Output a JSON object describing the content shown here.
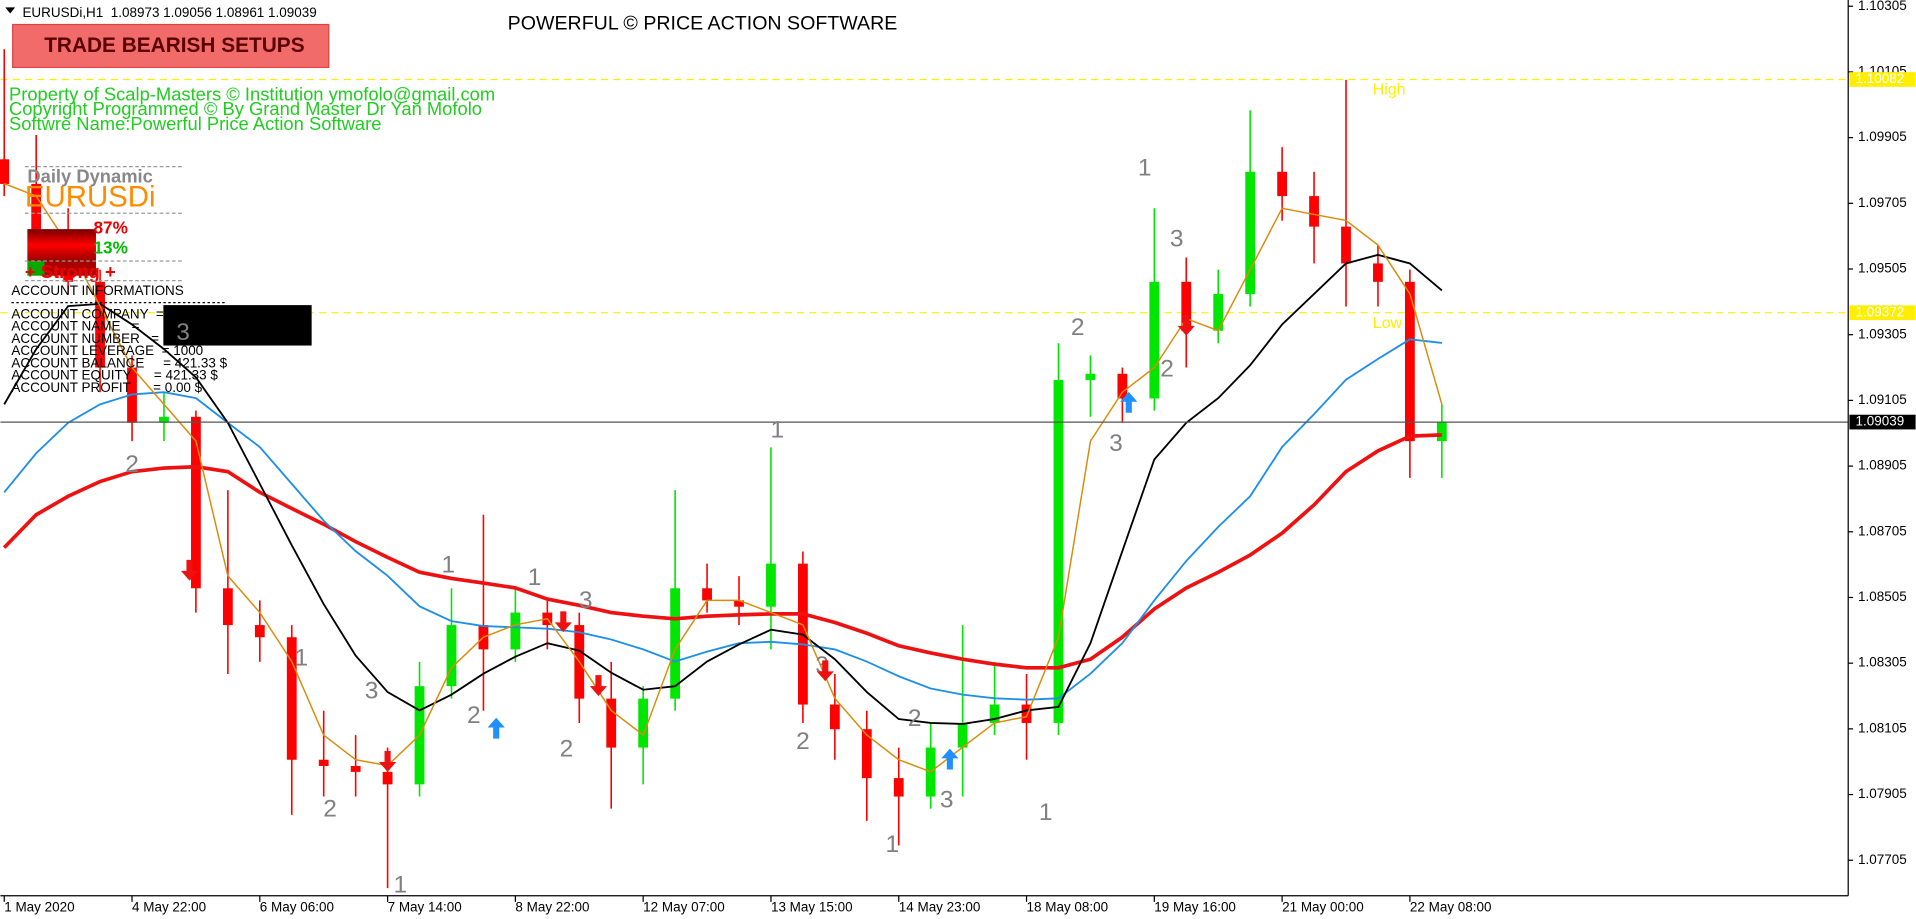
{
  "chart_data": {
    "type": "candlestick",
    "header": "EURUSDi,H1  1.08973 1.09056 1.08961 1.09039",
    "title": "POWERFUL © PRICE ACTION SOFTWARE",
    "ylim": [
      1.07597,
      1.10324
    ],
    "yticks": [
      1.10305,
      1.10105,
      1.09905,
      1.09705,
      1.09505,
      1.09305,
      1.09105,
      1.08905,
      1.08705,
      1.08505,
      1.08305,
      1.08105,
      1.07905,
      1.07705
    ],
    "xlim": [
      -0.12,
      57.72
    ],
    "xticks": [
      {
        "value": 0,
        "label": "1 May 2020"
      },
      {
        "value": 4,
        "label": "4 May 22:00"
      },
      {
        "value": 8,
        "label": "6 May 06:00"
      },
      {
        "value": 12,
        "label": "7 May 14:00"
      },
      {
        "value": 16,
        "label": "8 May 22:00"
      },
      {
        "value": 20,
        "label": "12 May 07:00"
      },
      {
        "value": 24,
        "label": "13 May 15:00"
      },
      {
        "value": 28,
        "label": "14 May 23:00"
      },
      {
        "value": 32,
        "label": "18 May 08:00"
      },
      {
        "value": 36,
        "label": "19 May 16:00"
      },
      {
        "value": 40,
        "label": "21 May 00:00"
      },
      {
        "value": 44,
        "label": "22 May 08:00"
      }
    ],
    "up_color": "#00e600",
    "down_color": "#ff0000",
    "candles": [
      [
        1.09839,
        1.10174,
        1.09727,
        1.09764
      ],
      [
        1.09764,
        1.09913,
        1.09578,
        1.09615
      ],
      [
        1.09615,
        1.0969,
        1.09429,
        1.09466
      ],
      [
        1.09466,
        1.09503,
        1.0913,
        1.09205
      ],
      [
        1.09205,
        1.09242,
        1.08981,
        1.09037
      ],
      [
        1.09037,
        1.0913,
        1.08981,
        1.09055
      ],
      [
        1.09055,
        1.09074,
        1.08459,
        1.08533
      ],
      [
        1.08533,
        1.08832,
        1.08272,
        1.08421
      ],
      [
        1.08421,
        1.08496,
        1.08309,
        1.08384
      ],
      [
        1.08384,
        1.08421,
        1.07843,
        1.08011
      ],
      [
        1.08011,
        1.0816,
        1.07899,
        1.07992
      ],
      [
        1.07992,
        1.08086,
        1.07899,
        1.07974
      ],
      [
        1.07974,
        1.08048,
        1.0762,
        1.07936
      ],
      [
        1.07936,
        1.08309,
        1.07899,
        1.08235
      ],
      [
        1.08235,
        1.08533,
        1.08197,
        1.08421
      ],
      [
        1.08421,
        1.08757,
        1.0816,
        1.08347
      ],
      [
        1.08347,
        1.08533,
        1.08309,
        1.08459
      ],
      [
        1.08459,
        1.08496,
        1.08347,
        1.08421
      ],
      [
        1.08421,
        1.08459,
        1.08123,
        1.08197
      ],
      [
        1.08197,
        1.08309,
        1.07862,
        1.08048
      ],
      [
        1.08048,
        1.08235,
        1.07936,
        1.08197
      ],
      [
        1.08197,
        1.08832,
        1.0816,
        1.08533
      ],
      [
        1.08533,
        1.08608,
        1.08459,
        1.08496
      ],
      [
        1.08496,
        1.0857,
        1.08421,
        1.08477
      ],
      [
        1.08477,
        1.08962,
        1.08347,
        1.08608
      ],
      [
        1.08608,
        1.08645,
        1.08123,
        1.08179
      ],
      [
        1.08179,
        1.08272,
        1.08011,
        1.08104
      ],
      [
        1.08104,
        1.0816,
        1.07825,
        1.07955
      ],
      [
        1.07955,
        1.08048,
        1.0775,
        1.07899
      ],
      [
        1.07899,
        1.08123,
        1.07862,
        1.08048
      ],
      [
        1.08048,
        1.08421,
        1.07899,
        1.08123
      ],
      [
        1.08123,
        1.08309,
        1.08086,
        1.08179
      ],
      [
        1.08179,
        1.08272,
        1.08011,
        1.08123
      ],
      [
        1.08123,
        1.09279,
        1.08086,
        1.09167
      ],
      [
        1.09167,
        1.09242,
        1.09055,
        1.09186
      ],
      [
        1.09186,
        1.09205,
        1.09037,
        1.09111
      ],
      [
        1.09111,
        1.0969,
        1.09074,
        1.09466
      ],
      [
        1.09466,
        1.0954,
        1.09205,
        1.09317
      ],
      [
        1.09317,
        1.09503,
        1.09279,
        1.09429
      ],
      [
        1.09429,
        1.09988,
        1.09391,
        1.09801
      ],
      [
        1.09801,
        1.09876,
        1.09652,
        1.09727
      ],
      [
        1.09727,
        1.09801,
        1.09522,
        1.09634
      ],
      [
        1.09634,
        1.10081,
        1.09391,
        1.09522
      ],
      [
        1.09522,
        1.09578,
        1.09391,
        1.09466
      ],
      [
        1.09466,
        1.09503,
        1.08869,
        1.08981
      ],
      [
        1.08981,
        1.09093,
        1.08869,
        1.09039
      ]
    ],
    "moving_averages": [
      {
        "color": "#ee1111",
        "width": 3,
        "values": [
          1.08657,
          1.08757,
          1.08813,
          1.08858,
          1.08888,
          1.08899,
          1.08903,
          1.08888,
          1.08825,
          1.08776,
          1.08728,
          1.08675,
          1.08627,
          1.08582,
          1.08563,
          1.08549,
          1.08534,
          1.085,
          1.08481,
          1.08459,
          1.08448,
          1.0844,
          1.08448,
          1.08452,
          1.08455,
          1.08455,
          1.08429,
          1.08396,
          1.08358,
          1.08336,
          1.08317,
          1.08302,
          1.08291,
          1.08291,
          1.08317,
          1.08384,
          1.0847,
          1.08534,
          1.08582,
          1.08634,
          1.08701,
          1.08787,
          1.08888,
          1.08951,
          1.08996,
          1.09
        ]
      },
      {
        "color": "#1e8fe8",
        "width": 1.5,
        "values": [
          1.08825,
          1.08944,
          1.09037,
          1.09093,
          1.09123,
          1.0913,
          1.09112,
          1.09037,
          1.08963,
          1.08851,
          1.08739,
          1.08646,
          1.08571,
          1.08478,
          1.08433,
          1.08418,
          1.08414,
          1.0841,
          1.08399,
          1.08377,
          1.08347,
          1.0831,
          1.0834,
          1.08366,
          1.0837,
          1.08362,
          1.08347,
          1.0831,
          1.08265,
          1.08228,
          1.08209,
          1.08198,
          1.08194,
          1.08198,
          1.08273,
          1.08366,
          1.08496,
          1.08616,
          1.0872,
          1.08813,
          1.08963,
          1.09063,
          1.09168,
          1.09231,
          1.09291,
          1.0928
        ]
      },
      {
        "color": "#000000",
        "width": 1.5,
        "values": [
          1.09093,
          1.09261,
          1.09392,
          1.09399,
          1.09336,
          1.09261,
          1.09175,
          1.09037,
          1.08851,
          1.08664,
          1.08485,
          1.08328,
          1.08217,
          1.08161,
          1.08209,
          1.08273,
          1.08325,
          1.08366,
          1.08343,
          1.08276,
          1.08224,
          1.08235,
          1.0831,
          1.08362,
          1.08407,
          1.08392,
          1.08317,
          1.08217,
          1.08135,
          1.08123,
          1.0812,
          1.08135,
          1.08161,
          1.08172,
          1.08366,
          1.08646,
          1.08925,
          1.09037,
          1.09112,
          1.09212,
          1.09336,
          1.09429,
          1.09522,
          1.09548,
          1.09522,
          1.0944
        ]
      },
      {
        "color": "#d98b0a",
        "width": 1.2,
        "values": [
          1.09765,
          1.09727,
          1.09578,
          1.09392,
          1.09205,
          1.09093,
          1.08981,
          1.08571,
          1.08459,
          1.0831,
          1.08086,
          1.08011,
          1.07993,
          1.08086,
          1.08291,
          1.08384,
          1.08422,
          1.0844,
          1.0831,
          1.08161,
          1.08086,
          1.08347,
          1.08496,
          1.08496,
          1.08459,
          1.08422,
          1.08198,
          1.08086,
          1.08011,
          1.07974,
          1.08049,
          1.08123,
          1.08142,
          1.08384,
          1.08981,
          1.0913,
          1.09205,
          1.09354,
          1.09317,
          1.09503,
          1.0969,
          1.09671,
          1.09653,
          1.09578,
          1.09429,
          1.09093
        ]
      }
    ],
    "levels": [
      {
        "label": "High",
        "value": 1.10082,
        "color": "#ffee00"
      },
      {
        "label": "Low",
        "value": 1.09372,
        "color": "#ffee00"
      }
    ],
    "current_price": 1.09039,
    "wave_labels": [
      {
        "text": "3",
        "x": 5.6,
        "y": 1.09309
      },
      {
        "text": "2",
        "x": 4.0,
        "y": 1.08907
      },
      {
        "text": "1",
        "x": 9.3,
        "y": 1.08317
      },
      {
        "text": "2",
        "x": 10.2,
        "y": 1.07858
      },
      {
        "text": "3",
        "x": 11.5,
        "y": 1.08217
      },
      {
        "text": "1",
        "x": 12.4,
        "y": 1.07627
      },
      {
        "text": "1",
        "x": 13.9,
        "y": 1.08601
      },
      {
        "text": "2",
        "x": 14.7,
        "y": 1.08142
      },
      {
        "text": "1",
        "x": 16.6,
        "y": 1.08563
      },
      {
        "text": "3",
        "x": 18.2,
        "y": 1.08492
      },
      {
        "text": "2",
        "x": 17.6,
        "y": 1.08041
      },
      {
        "text": "1",
        "x": 24.2,
        "y": 1.09011
      },
      {
        "text": "3",
        "x": 25.6,
        "y": 1.08295
      },
      {
        "text": "2",
        "x": 25.0,
        "y": 1.08064
      },
      {
        "text": "2",
        "x": 28.5,
        "y": 1.08134
      },
      {
        "text": "3",
        "x": 29.5,
        "y": 1.07885
      },
      {
        "text": "1",
        "x": 27.8,
        "y": 1.0775
      },
      {
        "text": "1",
        "x": 32.6,
        "y": 1.07847
      },
      {
        "text": "2",
        "x": 33.6,
        "y": 1.09324
      },
      {
        "text": "3",
        "x": 34.8,
        "y": 1.0897
      },
      {
        "text": "1",
        "x": 35.7,
        "y": 1.09809
      },
      {
        "text": "3",
        "x": 36.7,
        "y": 1.09593
      },
      {
        "text": "2",
        "x": 36.4,
        "y": 1.09198
      }
    ],
    "arrows": [
      {
        "dir": "down",
        "x": 5.8,
        "y": 1.08586
      },
      {
        "dir": "down",
        "x": 12.0,
        "y": 1.08004
      },
      {
        "dir": "up",
        "x": 15.4,
        "y": 1.08109
      },
      {
        "dir": "down",
        "x": 17.5,
        "y": 1.08429
      },
      {
        "dir": "down",
        "x": 18.6,
        "y": 1.08235
      },
      {
        "dir": "down",
        "x": 25.7,
        "y": 1.0828
      },
      {
        "dir": "up",
        "x": 29.6,
        "y": 1.08015
      },
      {
        "dir": "up",
        "x": 35.2,
        "y": 1.09101
      },
      {
        "dir": "down",
        "x": 37.0,
        "y": 1.09332
      }
    ]
  },
  "panel": {
    "button": "TRADE BEARISH SETUPS",
    "credits": [
      "Property of Scalp-Masters © Institution ymofolo@gmail.com",
      "Copyright Programmed © By Grand Master Dr Yan Mofolo",
      "Softwre Name:Powerful Price Action Software"
    ],
    "dynamic_title": "Daily Dynamic",
    "symbol": "EURUSDi",
    "bear_pct": "87%",
    "bull_pct": "13%",
    "strength": "+ Strong +",
    "account_title": "ACCOUNT INFORMATIONS",
    "account_rows": [
      "ACCOUNT COMPANY  =",
      "ACCOUNT NAME   =",
      "ACCOUNT NUMBER   =",
      "ACCOUNT LEVERAGE  = 1000",
      "ACCOUNT BALANCE     = 421.33 $",
      "ACCOUNT EQUITY      = 421.33 $",
      "ACCOUNT PROFIT      = 0.00 $"
    ]
  }
}
